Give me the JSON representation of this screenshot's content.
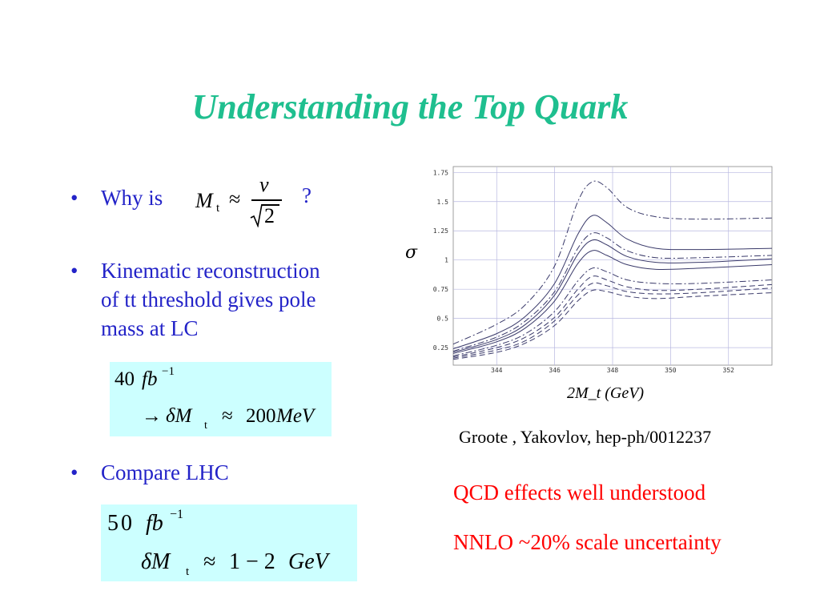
{
  "slide": {
    "title": "Understanding the Top Quark",
    "bullets": [
      {
        "text": "Why is",
        "suffix": "?"
      },
      {
        "lines": [
          "Kinematic reconstruction",
          "of  tt threshold gives pole",
          "mass at LC"
        ]
      },
      {
        "text": "Compare LHC"
      }
    ],
    "formula_why": {
      "lhs": "M",
      "sub": "t",
      "approx": "≈",
      "num": "v",
      "den": "2"
    },
    "box1": {
      "line1": "40",
      "unit1": "fb",
      "exp1": "−1",
      "arrow": "→",
      "line2_prefix": "δM",
      "sub2": "t",
      "approx": "≈",
      "value": "200",
      "unit2": "MeV"
    },
    "box2": {
      "line1": "50",
      "unit1": "fb",
      "exp1": "−1",
      "line2_prefix": "δM",
      "sub2": "t",
      "approx": "≈",
      "value": "1 − 2",
      "unit2": "GeV"
    },
    "credit": "Groote , Yakovlov, hep-ph/0012237",
    "notes": [
      "QCD effects well understood",
      "NNLO ~20% scale uncertainty"
    ]
  },
  "chart_data": {
    "type": "line",
    "ylabel": "σ",
    "xlabel": "2M_t (GeV)",
    "xlim": [
      342.5,
      353.5
    ],
    "ylim": [
      0.1,
      1.8
    ],
    "xticks": [
      344,
      346,
      348,
      350,
      352
    ],
    "yticks": [
      0.25,
      0.5,
      0.75,
      1,
      1.25,
      1.5,
      1.75
    ],
    "ytick_labels": [
      "0.25",
      "0.5",
      "0.75",
      "1",
      "1.25",
      "1.5",
      "1.75"
    ],
    "xtick_labels": [
      "344",
      "346",
      "348",
      "350",
      "352"
    ],
    "grid": true,
    "series": [
      {
        "style": "dashdot",
        "x": [
          342.5,
          344,
          345,
          346,
          346.8,
          347.3,
          347.8,
          348.5,
          349.5,
          351,
          353.5
        ],
        "y": [
          0.28,
          0.45,
          0.62,
          0.95,
          1.5,
          1.67,
          1.62,
          1.45,
          1.37,
          1.35,
          1.36
        ]
      },
      {
        "style": "solid",
        "x": [
          342.5,
          344,
          345,
          346,
          346.8,
          347.3,
          347.8,
          348.5,
          349.5,
          351,
          353.5
        ],
        "y": [
          0.24,
          0.37,
          0.52,
          0.8,
          1.22,
          1.38,
          1.32,
          1.18,
          1.1,
          1.09,
          1.1
        ]
      },
      {
        "style": "dashdot",
        "x": [
          342.5,
          344,
          345,
          346,
          346.8,
          347.3,
          347.8,
          348.5,
          349.5,
          351,
          353.5
        ],
        "y": [
          0.22,
          0.34,
          0.48,
          0.73,
          1.1,
          1.23,
          1.19,
          1.08,
          1.02,
          1.02,
          1.04
        ]
      },
      {
        "style": "solid",
        "x": [
          342.5,
          344,
          345,
          346,
          346.8,
          347.3,
          347.8,
          348.5,
          349.5,
          351,
          353.5
        ],
        "y": [
          0.21,
          0.32,
          0.45,
          0.7,
          1.05,
          1.17,
          1.13,
          1.03,
          0.98,
          0.98,
          1.01
        ]
      },
      {
        "style": "solid",
        "x": [
          342.5,
          344,
          345,
          346,
          346.8,
          347.3,
          347.8,
          348.5,
          349.5,
          351,
          353.5
        ],
        "y": [
          0.2,
          0.3,
          0.42,
          0.65,
          0.97,
          1.08,
          1.04,
          0.96,
          0.92,
          0.93,
          0.96
        ]
      },
      {
        "style": "dashdot",
        "x": [
          342.5,
          344,
          345,
          346,
          346.8,
          347.3,
          347.8,
          348.5,
          349.5,
          351,
          353.5
        ],
        "y": [
          0.18,
          0.27,
          0.37,
          0.56,
          0.82,
          0.93,
          0.9,
          0.83,
          0.8,
          0.8,
          0.83
        ]
      },
      {
        "style": "dashed",
        "x": [
          342.5,
          344,
          345,
          346,
          346.8,
          347.3,
          347.8,
          348.5,
          349.5,
          351,
          353.5
        ],
        "y": [
          0.17,
          0.25,
          0.34,
          0.51,
          0.75,
          0.86,
          0.83,
          0.77,
          0.74,
          0.75,
          0.79
        ]
      },
      {
        "style": "dashed",
        "x": [
          342.5,
          344,
          345,
          346,
          346.8,
          347.3,
          347.8,
          348.5,
          349.5,
          351,
          353.5
        ],
        "y": [
          0.16,
          0.23,
          0.31,
          0.48,
          0.7,
          0.8,
          0.78,
          0.73,
          0.71,
          0.72,
          0.76
        ]
      },
      {
        "style": "dashed",
        "x": [
          342.5,
          344,
          345,
          346,
          346.8,
          347.3,
          347.8,
          348.5,
          349.5,
          351,
          353.5
        ],
        "y": [
          0.15,
          0.21,
          0.29,
          0.44,
          0.65,
          0.74,
          0.73,
          0.69,
          0.67,
          0.69,
          0.72
        ]
      }
    ]
  }
}
